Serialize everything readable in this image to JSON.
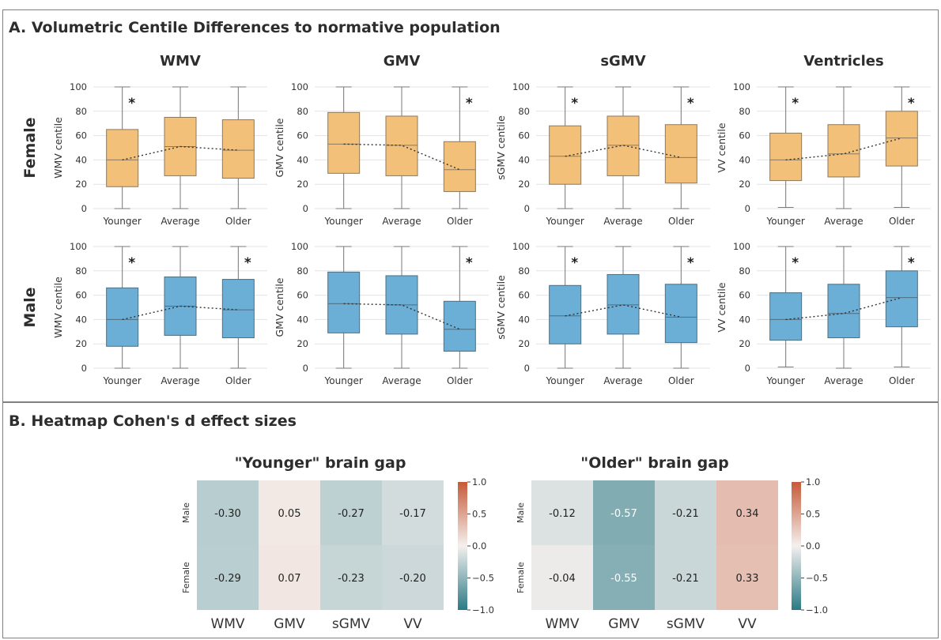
{
  "panel_a": {
    "title": "A. Volumetric Centile Differences to normative population"
  },
  "panel_b": {
    "title": "B. Heatmap Cohen's d effect sizes"
  },
  "chart_data": [
    {
      "type": "box",
      "columns": [
        "WMV",
        "GMV",
        "sGMV",
        "Ventricles"
      ],
      "rows": [
        "Female",
        "Male"
      ],
      "ylabels": [
        "WMV centile",
        "GMV centile",
        "sGMV centile",
        "VV centile"
      ],
      "categories": [
        "Younger",
        "Average",
        "Older"
      ],
      "ylim": [
        0,
        100
      ],
      "yticks": [
        0,
        20,
        40,
        60,
        80,
        100
      ],
      "grid": true,
      "colors": {
        "Female": "#f2c078",
        "Male": "#6baed6"
      },
      "median_line": "dotted",
      "significance_marker": "*",
      "boxes": {
        "WMV": {
          "Female": [
            [
              0,
              18,
              40,
              65,
              100
            ],
            [
              0,
              27,
              51,
              75,
              100
            ],
            [
              0,
              25,
              48,
              73,
              100
            ]
          ],
          "Male": [
            [
              0,
              18,
              40,
              66,
              100
            ],
            [
              0,
              27,
              51,
              75,
              100
            ],
            [
              0,
              25,
              48,
              73,
              100
            ]
          ]
        },
        "GMV": {
          "Female": [
            [
              0,
              29,
              53,
              79,
              100
            ],
            [
              0,
              27,
              52,
              76,
              100
            ],
            [
              0,
              14,
              32,
              55,
              100
            ]
          ],
          "Male": [
            [
              0,
              29,
              53,
              79,
              100
            ],
            [
              0,
              28,
              52,
              76,
              100
            ],
            [
              0,
              14,
              32,
              55,
              100
            ]
          ]
        },
        "sGMV": {
          "Female": [
            [
              0,
              20,
              43,
              68,
              100
            ],
            [
              0,
              27,
              52,
              76,
              100
            ],
            [
              0,
              21,
              42,
              69,
              100
            ]
          ],
          "Male": [
            [
              0,
              20,
              43,
              68,
              100
            ],
            [
              0,
              28,
              52,
              77,
              100
            ],
            [
              0,
              21,
              42,
              69,
              100
            ]
          ]
        },
        "Ventricles": {
          "Female": [
            [
              1,
              23,
              40,
              62,
              100
            ],
            [
              0,
              26,
              45,
              69,
              100
            ],
            [
              1,
              35,
              58,
              80,
              100
            ]
          ],
          "Male": [
            [
              1,
              23,
              40,
              62,
              100
            ],
            [
              0,
              25,
              45,
              69,
              100
            ],
            [
              1,
              34,
              58,
              80,
              100
            ]
          ]
        }
      },
      "stars": {
        "WMV": {
          "Female": [
            "Younger"
          ],
          "Male": [
            "Younger",
            "Older"
          ]
        },
        "GMV": {
          "Female": [
            "Older"
          ],
          "Male": [
            "Older"
          ]
        },
        "sGMV": {
          "Female": [
            "Younger",
            "Older"
          ],
          "Male": [
            "Younger",
            "Older"
          ]
        },
        "Ventricles": {
          "Female": [
            "Younger",
            "Older"
          ],
          "Male": [
            "Younger",
            "Older"
          ]
        }
      }
    },
    {
      "type": "heatmap",
      "title": "\"Younger\" brain gap",
      "rows": [
        "Male",
        "Female"
      ],
      "columns": [
        "WMV",
        "GMV",
        "sGMV",
        "VV"
      ],
      "values": [
        [
          -0.3,
          0.05,
          -0.27,
          -0.17
        ],
        [
          -0.29,
          0.07,
          -0.23,
          -0.2
        ]
      ],
      "colorbar": {
        "min": -1.0,
        "max": 1.0,
        "ticks": [
          "1.0",
          "0.5",
          "0.0",
          "−0.5",
          "−1.0"
        ]
      }
    },
    {
      "type": "heatmap",
      "title": "\"Older\" brain gap",
      "rows": [
        "Male",
        "Female"
      ],
      "columns": [
        "WMV",
        "GMV",
        "sGMV",
        "VV"
      ],
      "values": [
        [
          -0.12,
          -0.57,
          -0.21,
          0.34
        ],
        [
          -0.04,
          -0.55,
          -0.21,
          0.33
        ]
      ],
      "colorbar": {
        "min": -1.0,
        "max": 1.0,
        "ticks": [
          "1.0",
          "0.5",
          "0.0",
          "−0.5",
          "−1.0"
        ]
      }
    }
  ]
}
